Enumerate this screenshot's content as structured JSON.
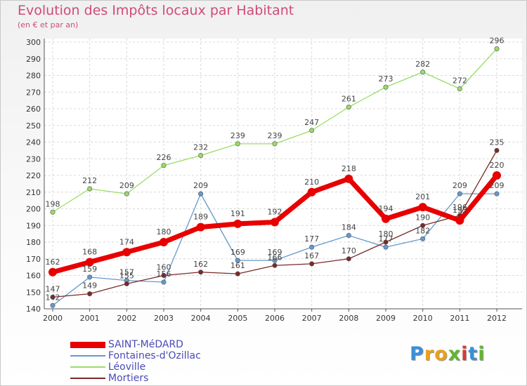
{
  "chart_data": {
    "type": "line",
    "title": "Evolution des Impôts locaux par Habitant",
    "subtitle": "(en € et par an)",
    "categories": [
      "2000",
      "2001",
      "2002",
      "2003",
      "2004",
      "2005",
      "2006",
      "2007",
      "2008",
      "2009",
      "2010",
      "2011",
      "2012"
    ],
    "ylim": [
      140,
      300
    ],
    "yticks": [
      140,
      150,
      160,
      170,
      180,
      190,
      200,
      210,
      220,
      230,
      240,
      250,
      260,
      270,
      280,
      290,
      300
    ],
    "grid": true,
    "legend_position": "bottom-left",
    "series": [
      {
        "name": "SAINT-MéDARD",
        "color": "#e80000",
        "values": [
          162,
          168,
          174,
          180,
          189,
          191,
          192,
          210,
          218,
          194,
          201,
          193,
          220
        ],
        "labels": [
          "162",
          "168",
          "174",
          "180",
          "189",
          "191",
          "192",
          "210",
          "218",
          "194",
          "201",
          "193",
          "220"
        ]
      },
      {
        "name": "Fontaines-d'Ozillac",
        "color": "#6699cc",
        "values": [
          142,
          159,
          157,
          156,
          209,
          169,
          169,
          177,
          184,
          177,
          182,
          209,
          209
        ],
        "labels": [
          "142",
          "159",
          "157",
          "156",
          "209",
          "169",
          "169",
          "177",
          "184",
          "177",
          "182",
          "209",
          "209"
        ]
      },
      {
        "name": "Léoville",
        "color": "#99dd66",
        "values": [
          198,
          212,
          209,
          226,
          232,
          239,
          239,
          247,
          261,
          273,
          282,
          272,
          296
        ],
        "labels": [
          "198",
          "212",
          "209",
          "226",
          "232",
          "239",
          "239",
          "247",
          "261",
          "273",
          "282",
          "272",
          "296"
        ]
      },
      {
        "name": "Mortiers",
        "color": "#7a2a2a",
        "values": [
          147,
          149,
          155,
          160,
          162,
          161,
          166,
          167,
          170,
          180,
          190,
          196,
          235
        ],
        "labels": [
          "147",
          "149",
          "155",
          "160",
          "162",
          "161",
          "166",
          "167",
          "170",
          "180",
          "190",
          "196",
          "235"
        ]
      }
    ]
  },
  "brand": {
    "letters": [
      {
        "ch": "P",
        "color": "#3a8fd8"
      },
      {
        "ch": "r",
        "color": "#e8a21a"
      },
      {
        "ch": "o",
        "color": "#e8a21a"
      },
      {
        "ch": "x",
        "color": "#62b62e"
      },
      {
        "ch": "i",
        "color": "#d83a3a"
      },
      {
        "ch": "t",
        "color": "#3a8fd8"
      },
      {
        "ch": "i",
        "color": "#62b62e"
      }
    ]
  }
}
